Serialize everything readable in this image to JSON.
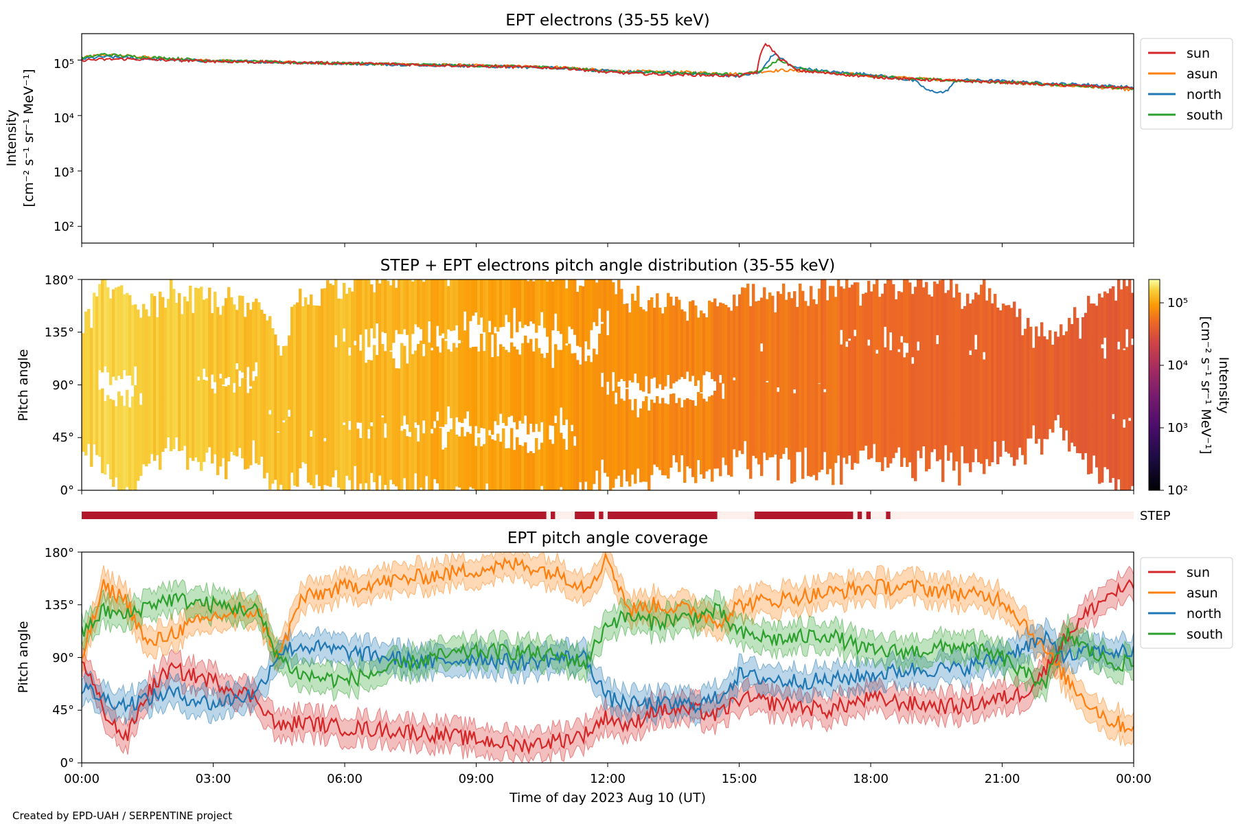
{
  "credit": "Created by EPD-UAH / SERPENTINE project",
  "colors": {
    "sun": "#d62728",
    "asun": "#ff7f0e",
    "north": "#1f77b4",
    "south": "#2ca02c",
    "step_bar": "#b2182b",
    "step_bar_off": "#fdf0ec"
  },
  "chart_data": [
    {
      "type": "line",
      "title": "EPT electrons (35-55 keV)",
      "ylabel": [
        "Intensity",
        "[cm⁻² s⁻¹ sr⁻¹ MeV⁻¹]"
      ],
      "yscale": "log",
      "ylim": [
        50,
        300000
      ],
      "yticks": [
        "10²",
        "10³",
        "10⁴",
        "10⁵"
      ],
      "xlim_hours": [
        0,
        24
      ],
      "legend": {
        "placement": "outside-right",
        "entries": [
          "sun",
          "asun",
          "north",
          "south"
        ]
      },
      "series": [
        {
          "name": "sun",
          "x_hours": [
            0,
            1,
            2,
            3,
            5,
            7,
            9,
            11,
            12,
            13,
            14,
            15,
            15.4,
            15.6,
            15.9,
            16.3,
            17,
            18,
            19,
            20,
            21,
            22,
            23,
            24
          ],
          "values": [
            100000,
            105000,
            100000,
            95000,
            90000,
            85000,
            78000,
            72000,
            60000,
            56000,
            54000,
            52000,
            60000,
            200000,
            110000,
            65000,
            58000,
            50000,
            45000,
            42000,
            40000,
            36000,
            34000,
            31000
          ]
        },
        {
          "name": "asun",
          "x_hours": [
            0,
            0.5,
            1,
            2,
            3,
            5,
            7,
            9,
            11,
            12,
            13,
            14,
            15,
            15.5,
            16,
            17,
            18,
            19,
            20,
            21,
            22,
            23,
            24
          ],
          "values": [
            110000,
            125000,
            120000,
            105000,
            98000,
            90000,
            85000,
            80000,
            74000,
            64000,
            62000,
            60000,
            56000,
            62000,
            66000,
            60000,
            52000,
            47000,
            43000,
            40000,
            36000,
            33000,
            29000
          ]
        },
        {
          "name": "north",
          "x_hours": [
            0,
            0.5,
            1,
            2,
            3,
            5,
            7,
            9,
            11,
            12,
            13,
            14,
            15,
            15.5,
            15.8,
            16.2,
            17,
            18,
            19,
            19.3,
            19.7,
            20,
            21,
            22,
            23,
            24
          ],
          "values": [
            105000,
            115000,
            110000,
            102000,
            96000,
            90000,
            84000,
            78000,
            72000,
            63000,
            60000,
            57000,
            52000,
            60000,
            130000,
            75000,
            62000,
            55000,
            42000,
            28000,
            26000,
            44000,
            42000,
            38000,
            36000,
            32000
          ]
        },
        {
          "name": "south",
          "x_hours": [
            0,
            0.5,
            1,
            2,
            3,
            5,
            7,
            9,
            11,
            12,
            13,
            14,
            15,
            15.5,
            15.9,
            16.3,
            17,
            18,
            19,
            20,
            21,
            22,
            23,
            24
          ],
          "values": [
            108000,
            128000,
            118000,
            108000,
            97000,
            90000,
            85000,
            79000,
            73000,
            62000,
            60000,
            58000,
            55000,
            62000,
            100000,
            70000,
            60000,
            52000,
            46000,
            42000,
            40000,
            37000,
            34000,
            30000
          ]
        }
      ]
    },
    {
      "type": "heatmap",
      "title": "STEP + EPT electrons pitch angle distribution (35-55 keV)",
      "ylabel": "Pitch angle",
      "ylim": [
        0,
        180
      ],
      "yticks": [
        "0°",
        "45°",
        "90°",
        "135°",
        "180°"
      ],
      "xlim_hours": [
        0,
        24
      ],
      "colorbar": {
        "label": [
          "Intensity",
          "[cm⁻² s⁻¹ sr⁻¹ MeV⁻¹]"
        ],
        "scale": "log",
        "range": [
          100,
          200000
        ],
        "ticks": [
          "10²",
          "10³",
          "10⁴",
          "10⁵"
        ],
        "colormap": "inferno"
      },
      "intensity_by_hour": {
        "x_hours": [
          0,
          3,
          6,
          9,
          12,
          15,
          18,
          21,
          24
        ],
        "values": [
          140000,
          120000,
          110000,
          90000,
          70000,
          55000,
          45000,
          38000,
          32000
        ]
      }
    },
    {
      "type": "bar",
      "label": "STEP",
      "coverage_intervals_hours": [
        [
          0,
          10.6
        ],
        [
          10.7,
          10.8
        ],
        [
          11.25,
          11.7
        ],
        [
          11.8,
          11.9
        ],
        [
          12.0,
          14.5
        ],
        [
          15.35,
          17.6
        ],
        [
          17.7,
          17.8
        ],
        [
          17.9,
          18.0
        ],
        [
          18.35,
          18.45
        ]
      ]
    },
    {
      "type": "line",
      "title": "EPT pitch angle coverage",
      "ylabel": "Pitch angle",
      "ylim": [
        0,
        180
      ],
      "yticks": [
        "0°",
        "45°",
        "90°",
        "135°",
        "180°"
      ],
      "xlabel": "Time of day 2023 Aug 10 (UT)",
      "xticks": [
        "00:00",
        "03:00",
        "06:00",
        "09:00",
        "12:00",
        "15:00",
        "18:00",
        "21:00",
        "00:00"
      ],
      "xlim_hours": [
        0,
        24
      ],
      "legend": {
        "placement": "outside-right",
        "entries": [
          "sun",
          "asun",
          "north",
          "south"
        ]
      },
      "series": [
        {
          "name": "sun",
          "x_hours": [
            0,
            0.5,
            1,
            1.5,
            2,
            3,
            4,
            4.5,
            5,
            6,
            7,
            8,
            9,
            10,
            11,
            11.5,
            12,
            12.5,
            13,
            14,
            14.5,
            15,
            16,
            17,
            18,
            19,
            20,
            21,
            21.5,
            22,
            22.5,
            23,
            23.5,
            24
          ],
          "values": [
            90,
            45,
            20,
            60,
            80,
            70,
            55,
            30,
            35,
            30,
            28,
            25,
            20,
            15,
            20,
            25,
            40,
            30,
            45,
            45,
            40,
            55,
            50,
            45,
            55,
            50,
            48,
            55,
            60,
            80,
            110,
            130,
            145,
            150
          ]
        },
        {
          "name": "asun",
          "x_hours": [
            0,
            0.5,
            1,
            1.5,
            2,
            3,
            4,
            4.5,
            5,
            6,
            7,
            8,
            9,
            10,
            11,
            11.5,
            12,
            12.5,
            13,
            14,
            14.5,
            15,
            16,
            17,
            18,
            19,
            20,
            21,
            21.5,
            22,
            22.5,
            23,
            23.5,
            24
          ],
          "values": [
            90,
            150,
            140,
            100,
            110,
            125,
            130,
            90,
            140,
            150,
            155,
            160,
            165,
            170,
            160,
            150,
            175,
            130,
            135,
            130,
            120,
            135,
            140,
            145,
            150,
            150,
            145,
            140,
            120,
            95,
            70,
            50,
            35,
            30
          ]
        },
        {
          "name": "north",
          "x_hours": [
            0,
            0.5,
            1,
            1.5,
            2,
            3,
            4,
            4.5,
            5,
            6,
            7,
            8,
            9,
            10,
            11,
            11.5,
            12,
            12.5,
            13,
            14,
            14.5,
            15,
            16,
            17,
            18,
            19,
            20,
            21,
            21.5,
            22,
            22.5,
            23,
            23.5,
            24
          ],
          "values": [
            65,
            55,
            50,
            55,
            60,
            50,
            60,
            95,
            100,
            95,
            90,
            85,
            90,
            85,
            90,
            90,
            55,
            50,
            50,
            50,
            55,
            75,
            70,
            70,
            75,
            80,
            80,
            90,
            100,
            105,
            90,
            95,
            95,
            95
          ]
        },
        {
          "name": "south",
          "x_hours": [
            0,
            0.5,
            1,
            1.5,
            2,
            3,
            4,
            4.5,
            5,
            6,
            7,
            8,
            9,
            10,
            11,
            11.5,
            12,
            12.5,
            13,
            14,
            14.5,
            15,
            16,
            17,
            18,
            19,
            20,
            21,
            21.5,
            22,
            22.5,
            23,
            23.5,
            24
          ],
          "values": [
            110,
            130,
            125,
            135,
            140,
            135,
            130,
            90,
            75,
            70,
            80,
            90,
            95,
            95,
            90,
            85,
            120,
            125,
            120,
            125,
            130,
            110,
            105,
            110,
            95,
            95,
            100,
            90,
            75,
            70,
            110,
            95,
            85,
            85
          ]
        }
      ]
    }
  ]
}
